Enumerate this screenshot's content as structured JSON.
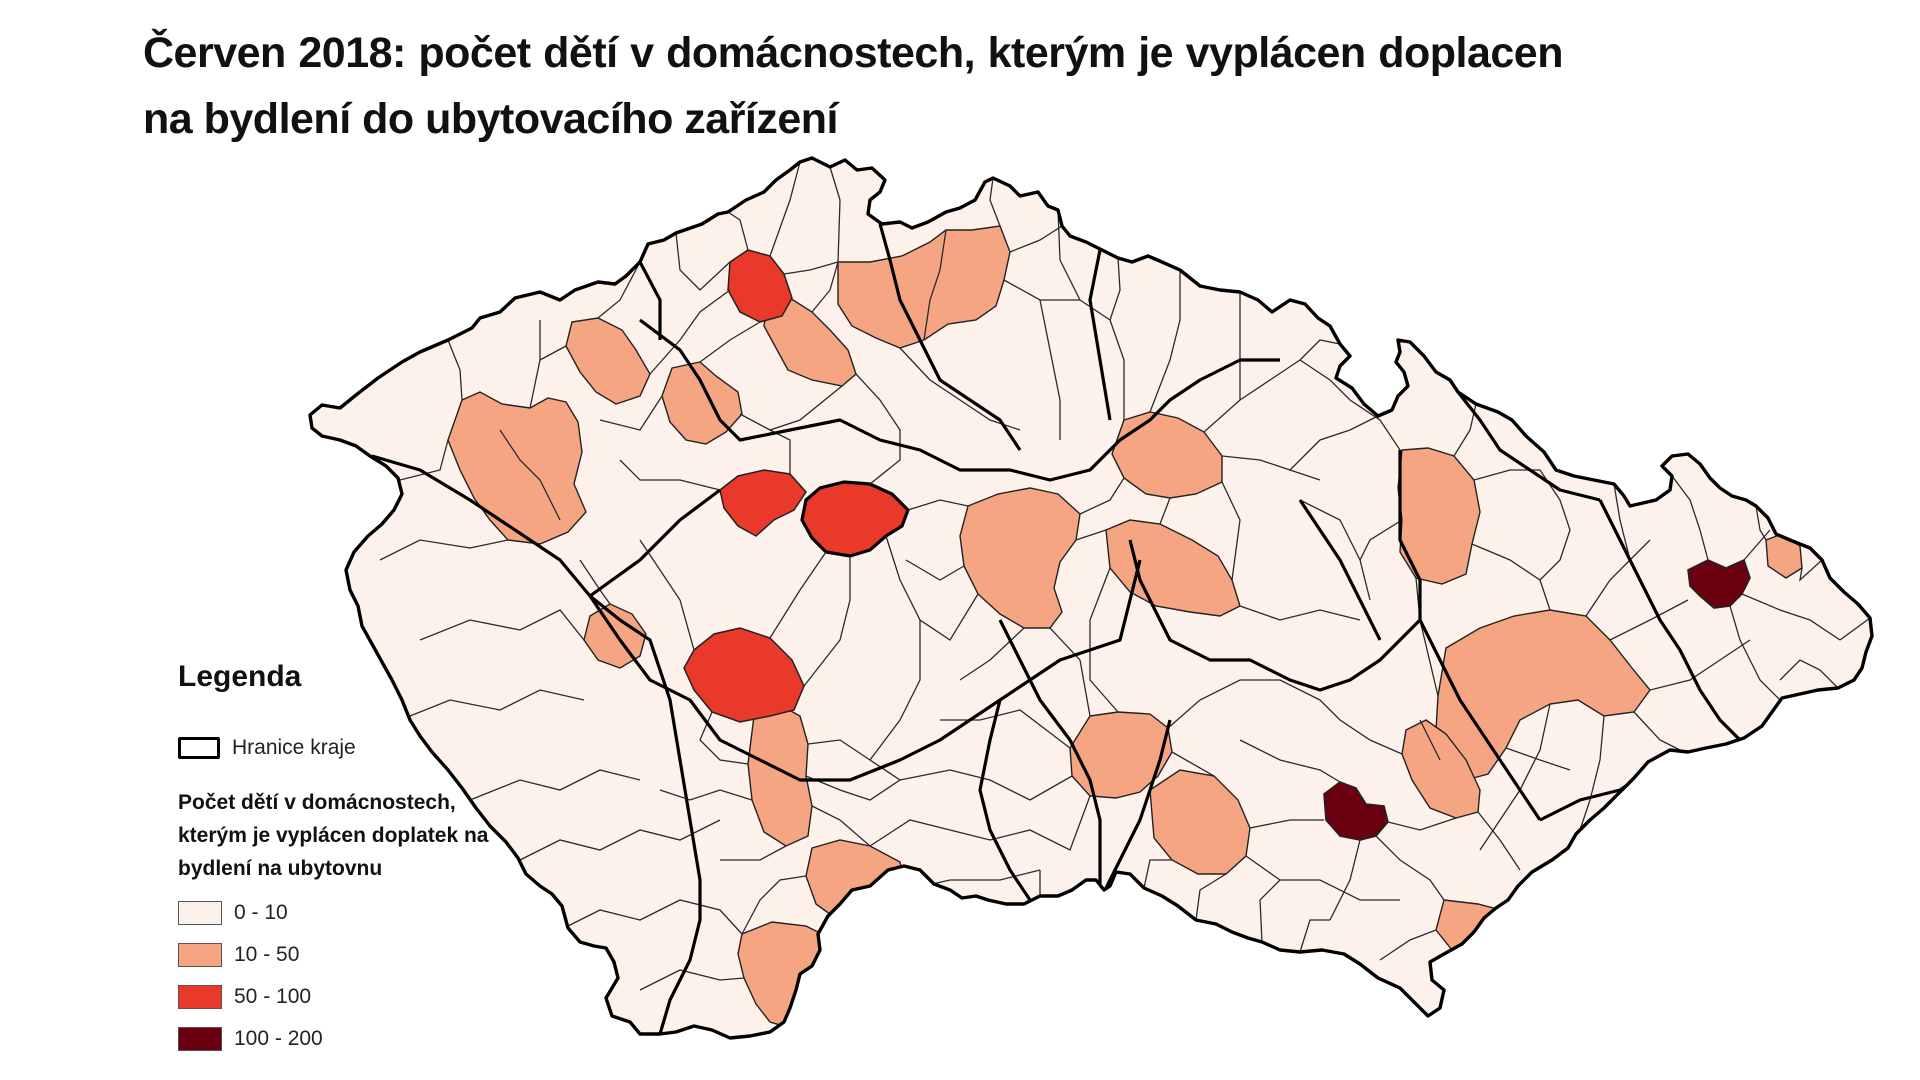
{
  "title": "Červen 2018: počet dětí v domácnostech, kterým je vyplácen doplacen na bydlení do ubytovacího zařízení",
  "legend": {
    "title": "Legenda",
    "border_label": "Hranice kraje",
    "subtitle": "Počet dětí v domácnostech, kterým je vyplácen doplatek na bydlení na ubytovnu",
    "classes": [
      {
        "label": "0 - 10",
        "color": "#fdf1ec"
      },
      {
        "label": "10 - 50",
        "color": "#f6a583"
      },
      {
        "label": "50 - 100",
        "color": "#e8392b"
      },
      {
        "label": "100 - 200",
        "color": "#6b0010"
      }
    ]
  },
  "colors": {
    "district_outline": "#222222",
    "region_border": "#000000",
    "background": "#ffffff"
  }
}
